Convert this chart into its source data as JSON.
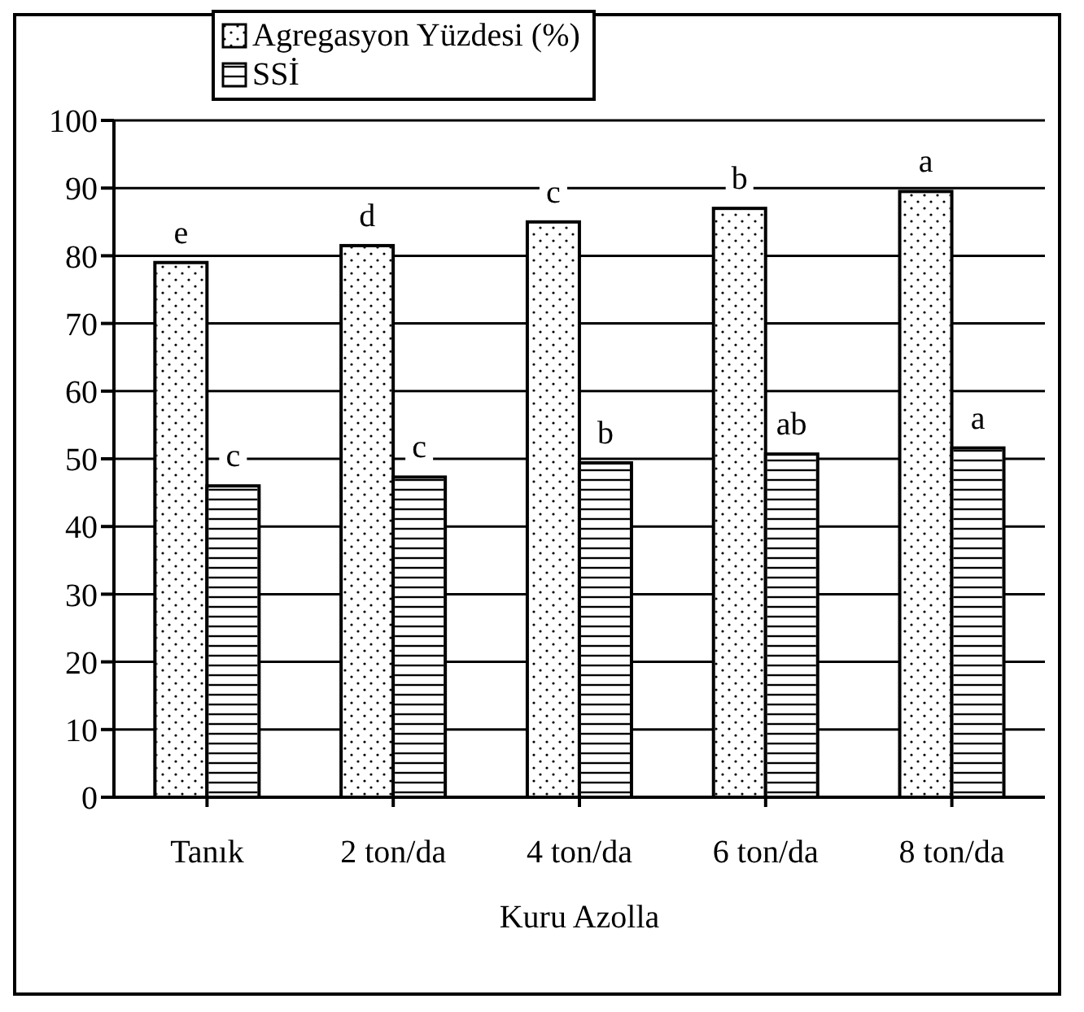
{
  "chart_data": {
    "type": "bar",
    "xlabel": "Kuru Azolla",
    "categories": [
      "Tanık",
      "2 ton/da",
      "4 ton/da",
      "6 ton/da",
      "8 ton/da"
    ],
    "series": [
      {
        "name": "Agregasyon Yüzdesi (%)",
        "color": "#ffffff",
        "values": [
          79,
          81.5,
          85,
          87,
          89.5
        ]
      },
      {
        "name": "SSİ",
        "color": "#ffffff",
        "values": [
          46,
          47.3,
          49.4,
          50.7,
          51.6
        ]
      }
    ],
    "ylim": [
      0,
      100
    ],
    "yticks": [
      0,
      10,
      20,
      30,
      40,
      50,
      60,
      70,
      80,
      90,
      100
    ],
    "grid": "y",
    "legend": "top",
    "annotations": [
      {
        "text": "e",
        "x": "Tanık",
        "y": 79
      },
      {
        "text": "d",
        "x": "2 ton/da",
        "y": 81.5
      },
      {
        "text": "c",
        "x": "4 ton/da",
        "y": 85
      },
      {
        "text": "b",
        "x": "6 ton/da",
        "y": 87
      },
      {
        "text": "a",
        "x": "8 ton/da",
        "y": 89.5
      },
      {
        "text": "c",
        "x": "Tanık",
        "y": 46
      },
      {
        "text": "c",
        "x": "2 ton/da",
        "y": 47.3
      },
      {
        "text": "b",
        "x": "4 ton/da",
        "y": 49.4
      },
      {
        "text": "ab",
        "x": "6 ton/da",
        "y": 50.7
      },
      {
        "text": "a",
        "x": "8 ton/da",
        "y": 51.6
      }
    ]
  }
}
